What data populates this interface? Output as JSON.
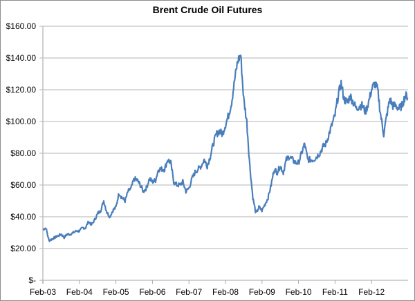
{
  "chart_data": {
    "type": "line",
    "title": "Brent Crude Oil Futures",
    "xlabel": "",
    "ylabel": "",
    "ylim": [
      0,
      160
    ],
    "grid": true,
    "legend": "none",
    "y_ticks": [
      "$-",
      "$20.00",
      "$40.00",
      "$60.00",
      "$80.00",
      "$100.00",
      "$120.00",
      "$140.00",
      "$160.00"
    ],
    "x_ticks": [
      "Feb-03",
      "Feb-04",
      "Feb-05",
      "Feb-06",
      "Feb-07",
      "Feb-08",
      "Feb-09",
      "Feb-10",
      "Feb-11",
      "Feb-12"
    ],
    "series": [
      {
        "name": "Brent Crude Oil Futures",
        "color": "#4a7ebb",
        "x": [
          "Feb-03",
          "Mar-03",
          "Apr-03",
          "May-03",
          "Jun-03",
          "Jul-03",
          "Aug-03",
          "Sep-03",
          "Oct-03",
          "Nov-03",
          "Dec-03",
          "Jan-04",
          "Feb-04",
          "Mar-04",
          "Apr-04",
          "May-04",
          "Jun-04",
          "Jul-04",
          "Aug-04",
          "Sep-04",
          "Oct-04",
          "Nov-04",
          "Dec-04",
          "Jan-05",
          "Feb-05",
          "Mar-05",
          "Apr-05",
          "May-05",
          "Jun-05",
          "Jul-05",
          "Aug-05",
          "Sep-05",
          "Oct-05",
          "Nov-05",
          "Dec-05",
          "Jan-06",
          "Feb-06",
          "Mar-06",
          "Apr-06",
          "May-06",
          "Jun-06",
          "Jul-06",
          "Aug-06",
          "Sep-06",
          "Oct-06",
          "Nov-06",
          "Dec-06",
          "Jan-07",
          "Feb-07",
          "Mar-07",
          "Apr-07",
          "May-07",
          "Jun-07",
          "Jul-07",
          "Aug-07",
          "Sep-07",
          "Oct-07",
          "Nov-07",
          "Dec-07",
          "Jan-08",
          "Feb-08",
          "Mar-08",
          "Apr-08",
          "May-08",
          "Jun-08",
          "Jul-08",
          "Aug-08",
          "Sep-08",
          "Oct-08",
          "Nov-08",
          "Dec-08",
          "Jan-09",
          "Feb-09",
          "Mar-09",
          "Apr-09",
          "May-09",
          "Jun-09",
          "Jul-09",
          "Aug-09",
          "Sep-09",
          "Oct-09",
          "Nov-09",
          "Dec-09",
          "Jan-10",
          "Feb-10",
          "Mar-10",
          "Apr-10",
          "May-10",
          "Jun-10",
          "Jul-10",
          "Aug-10",
          "Sep-10",
          "Oct-10",
          "Nov-10",
          "Dec-10",
          "Jan-11",
          "Feb-11",
          "Mar-11",
          "Apr-11",
          "May-11",
          "Jun-11",
          "Jul-11",
          "Aug-11",
          "Sep-11",
          "Oct-11",
          "Nov-11",
          "Dec-11",
          "Jan-12",
          "Feb-12",
          "Mar-12",
          "Apr-12",
          "May-12",
          "Jun-12",
          "Jul-12",
          "Aug-12",
          "Sep-12",
          "Oct-12",
          "Nov-12",
          "Dec-12",
          "Jan-13"
        ],
        "values": [
          32,
          33,
          25,
          26,
          27,
          28,
          29,
          27,
          29,
          29,
          30,
          31,
          31,
          33,
          33,
          37,
          35,
          38,
          42,
          44,
          50,
          43,
          40,
          44,
          46,
          55,
          52,
          50,
          56,
          58,
          64,
          63,
          60,
          56,
          58,
          64,
          62,
          63,
          70,
          70,
          70,
          76,
          74,
          62,
          60,
          60,
          62,
          56,
          58,
          64,
          68,
          70,
          72,
          76,
          72,
          78,
          86,
          92,
          94,
          92,
          98,
          104,
          112,
          126,
          138,
          142,
          114,
          100,
          72,
          52,
          42,
          46,
          44,
          48,
          52,
          60,
          70,
          68,
          72,
          68,
          76,
          78,
          76,
          74,
          74,
          80,
          86,
          76,
          76,
          76,
          78,
          80,
          84,
          86,
          92,
          98,
          104,
          116,
          124,
          114,
          112,
          116,
          112,
          108,
          110,
          110,
          106,
          112,
          120,
          124,
          120,
          104,
          92,
          104,
          114,
          110,
          110,
          108,
          110,
          116
        ]
      }
    ]
  }
}
